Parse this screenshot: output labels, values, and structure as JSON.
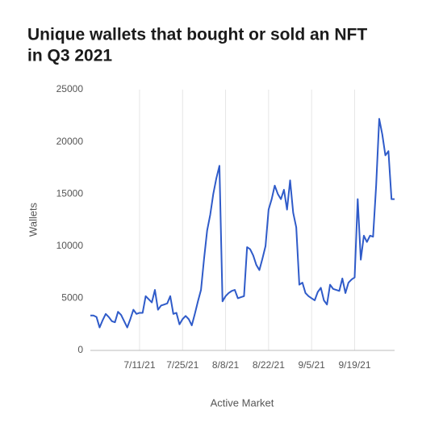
{
  "chart_data": {
    "type": "line",
    "title": [
      "Unique wallets that bought or sold an NFT",
      "in Q3 2021"
    ],
    "xlabel": "Active Market",
    "ylabel": "Wallets",
    "x": [
      "2021-06-25",
      "2021-06-26",
      "2021-06-27",
      "2021-06-28",
      "2021-06-29",
      "2021-06-30",
      "2021-07-01",
      "2021-07-02",
      "2021-07-03",
      "2021-07-04",
      "2021-07-05",
      "2021-07-06",
      "2021-07-07",
      "2021-07-08",
      "2021-07-09",
      "2021-07-10",
      "2021-07-11",
      "2021-07-12",
      "2021-07-13",
      "2021-07-14",
      "2021-07-15",
      "2021-07-16",
      "2021-07-17",
      "2021-07-18",
      "2021-07-19",
      "2021-07-20",
      "2021-07-21",
      "2021-07-22",
      "2021-07-23",
      "2021-07-24",
      "2021-07-25",
      "2021-07-26",
      "2021-07-27",
      "2021-07-28",
      "2021-07-29",
      "2021-07-30",
      "2021-07-31",
      "2021-08-01",
      "2021-08-02",
      "2021-08-03",
      "2021-08-04",
      "2021-08-05",
      "2021-08-06",
      "2021-08-07",
      "2021-08-08",
      "2021-08-09",
      "2021-08-10",
      "2021-08-11",
      "2021-08-12",
      "2021-08-13",
      "2021-08-14",
      "2021-08-15",
      "2021-08-16",
      "2021-08-17",
      "2021-08-18",
      "2021-08-19",
      "2021-08-20",
      "2021-08-21",
      "2021-08-22",
      "2021-08-23",
      "2021-08-24",
      "2021-08-25",
      "2021-08-26",
      "2021-08-27",
      "2021-08-28",
      "2021-08-29",
      "2021-08-30",
      "2021-08-31",
      "2021-09-01",
      "2021-09-02",
      "2021-09-03",
      "2021-09-04",
      "2021-09-05",
      "2021-09-06",
      "2021-09-07",
      "2021-09-08",
      "2021-09-09",
      "2021-09-10",
      "2021-09-11",
      "2021-09-12",
      "2021-09-13",
      "2021-09-14",
      "2021-09-15",
      "2021-09-16",
      "2021-09-17",
      "2021-09-18",
      "2021-09-19",
      "2021-09-20",
      "2021-09-21",
      "2021-09-22",
      "2021-09-23",
      "2021-09-24",
      "2021-09-25",
      "2021-09-26",
      "2021-09-27",
      "2021-09-28",
      "2021-09-29",
      "2021-09-30",
      "2021-10-01",
      "2021-10-02"
    ],
    "series": [
      {
        "name": "Wallets",
        "color": "#2f5bc9",
        "values": [
          3350,
          3350,
          3200,
          2200,
          2900,
          3500,
          3200,
          2800,
          2700,
          3700,
          3400,
          2800,
          2200,
          3000,
          3900,
          3500,
          3600,
          3600,
          5200,
          4900,
          4600,
          5800,
          3900,
          4300,
          4400,
          4500,
          5200,
          3500,
          3600,
          2500,
          3000,
          3300,
          3000,
          2400,
          3500,
          4700,
          5800,
          8800,
          11500,
          13000,
          15000,
          16500,
          17700,
          4700,
          5200,
          5500,
          5700,
          5800,
          5000,
          5100,
          5200,
          9900,
          9700,
          9100,
          8200,
          7700,
          8800,
          10000,
          13500,
          14500,
          15800,
          15000,
          14500,
          15400,
          13500,
          16300,
          13200,
          11800,
          6300,
          6500,
          5500,
          5200,
          5000,
          4800,
          5600,
          6000,
          4800,
          4400,
          6300,
          5900,
          5800,
          5700,
          6900,
          5500,
          6500,
          6800,
          7000,
          14500,
          8700,
          11000,
          10400,
          11000,
          10900,
          15800,
          22200,
          20700,
          18700,
          19100,
          14500,
          14500
        ]
      }
    ],
    "xlim": [
      "2021-06-25",
      "2021-10-02"
    ],
    "xticks": [
      {
        "value": "2021-07-11",
        "label": "7/11/21"
      },
      {
        "value": "2021-07-25",
        "label": "7/25/21"
      },
      {
        "value": "2021-08-08",
        "label": "8/8/21"
      },
      {
        "value": "2021-08-22",
        "label": "8/22/21"
      },
      {
        "value": "2021-09-05",
        "label": "9/5/21"
      },
      {
        "value": "2021-09-19",
        "label": "9/19/21"
      }
    ],
    "ylim": [
      0,
      25000
    ],
    "yticks": [
      0,
      5000,
      10000,
      15000,
      20000,
      25000
    ],
    "grid": "x"
  }
}
